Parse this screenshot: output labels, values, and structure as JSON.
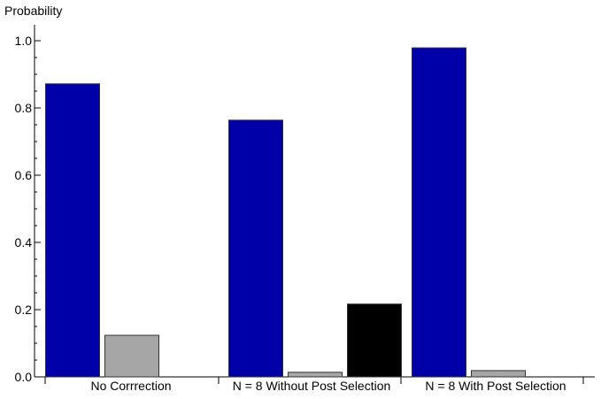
{
  "chart_data": {
    "type": "bar",
    "ylabel": "Probability",
    "xlabel": "",
    "ylim": [
      0,
      1.0
    ],
    "yticks": [
      "0.0",
      "0.2",
      "0.4",
      "0.6",
      "0.8",
      "1.0"
    ],
    "grid": false,
    "categories": [
      "No Corrrection",
      "N = 8 Without Post Selection",
      "N = 8 With Post Selection"
    ],
    "series": [
      {
        "color": "#0000a8",
        "values": [
          0.873,
          0.765,
          0.98
        ]
      },
      {
        "color": "#a6a6a6",
        "values": [
          0.125,
          0.015,
          0.02
        ]
      },
      {
        "color": "#000000",
        "values": [
          0.0,
          0.218,
          0.0
        ]
      }
    ]
  }
}
